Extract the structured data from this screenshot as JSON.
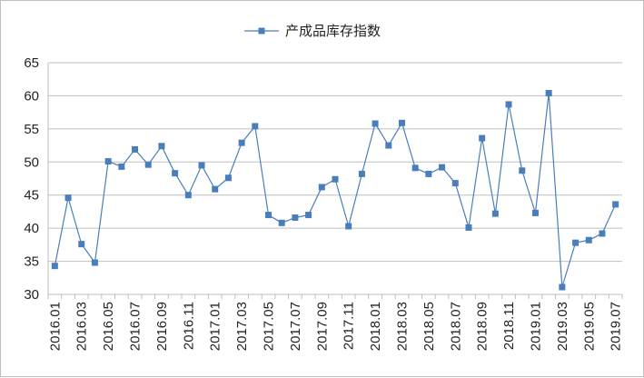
{
  "chart_data": {
    "type": "line",
    "title": "",
    "xlabel": "",
    "ylabel": "",
    "ylim": [
      30,
      65
    ],
    "yticks": [
      30,
      35,
      40,
      45,
      50,
      55,
      60,
      65
    ],
    "grid": "horizontal",
    "legend_position": "top-center",
    "line_color": "#4a7ebb",
    "marker": "square",
    "x_tick_labels": [
      "2016.01",
      "2016.03",
      "2016.05",
      "2016.07",
      "2016.09",
      "2016.11",
      "2017.01",
      "2017.03",
      "2017.05",
      "2017.07",
      "2017.09",
      "2017.11",
      "2018.01",
      "2018.03",
      "2018.05",
      "2018.07",
      "2018.09",
      "2018.11",
      "2019.01",
      "2019.03",
      "2019.05",
      "2019.07"
    ],
    "categories": [
      "2016.01",
      "2016.02",
      "2016.03",
      "2016.04",
      "2016.05",
      "2016.06",
      "2016.07",
      "2016.08",
      "2016.09",
      "2016.10",
      "2016.11",
      "2016.12",
      "2017.01",
      "2017.02",
      "2017.03",
      "2017.04",
      "2017.05",
      "2017.06",
      "2017.07",
      "2017.08",
      "2017.09",
      "2017.10",
      "2017.11",
      "2017.12",
      "2018.01",
      "2018.02",
      "2018.03",
      "2018.04",
      "2018.05",
      "2018.06",
      "2018.07",
      "2018.08",
      "2018.09",
      "2018.10",
      "2018.11",
      "2018.12",
      "2019.01",
      "2019.02",
      "2019.03",
      "2019.04",
      "2019.05",
      "2019.06",
      "2019.07"
    ],
    "series": [
      {
        "name": "产成品库存指数",
        "values": [
          34.3,
          44.6,
          37.6,
          34.8,
          50.1,
          49.3,
          51.9,
          49.6,
          52.4,
          48.3,
          45.0,
          49.5,
          45.9,
          47.6,
          52.9,
          55.4,
          42.0,
          40.8,
          41.6,
          42.0,
          46.2,
          47.4,
          40.3,
          48.2,
          55.8,
          52.5,
          55.9,
          49.1,
          48.2,
          49.2,
          46.8,
          40.1,
          53.6,
          42.2,
          58.7,
          48.7,
          42.3,
          60.4,
          31.1,
          37.8,
          38.2,
          39.2,
          43.6
        ]
      }
    ]
  }
}
